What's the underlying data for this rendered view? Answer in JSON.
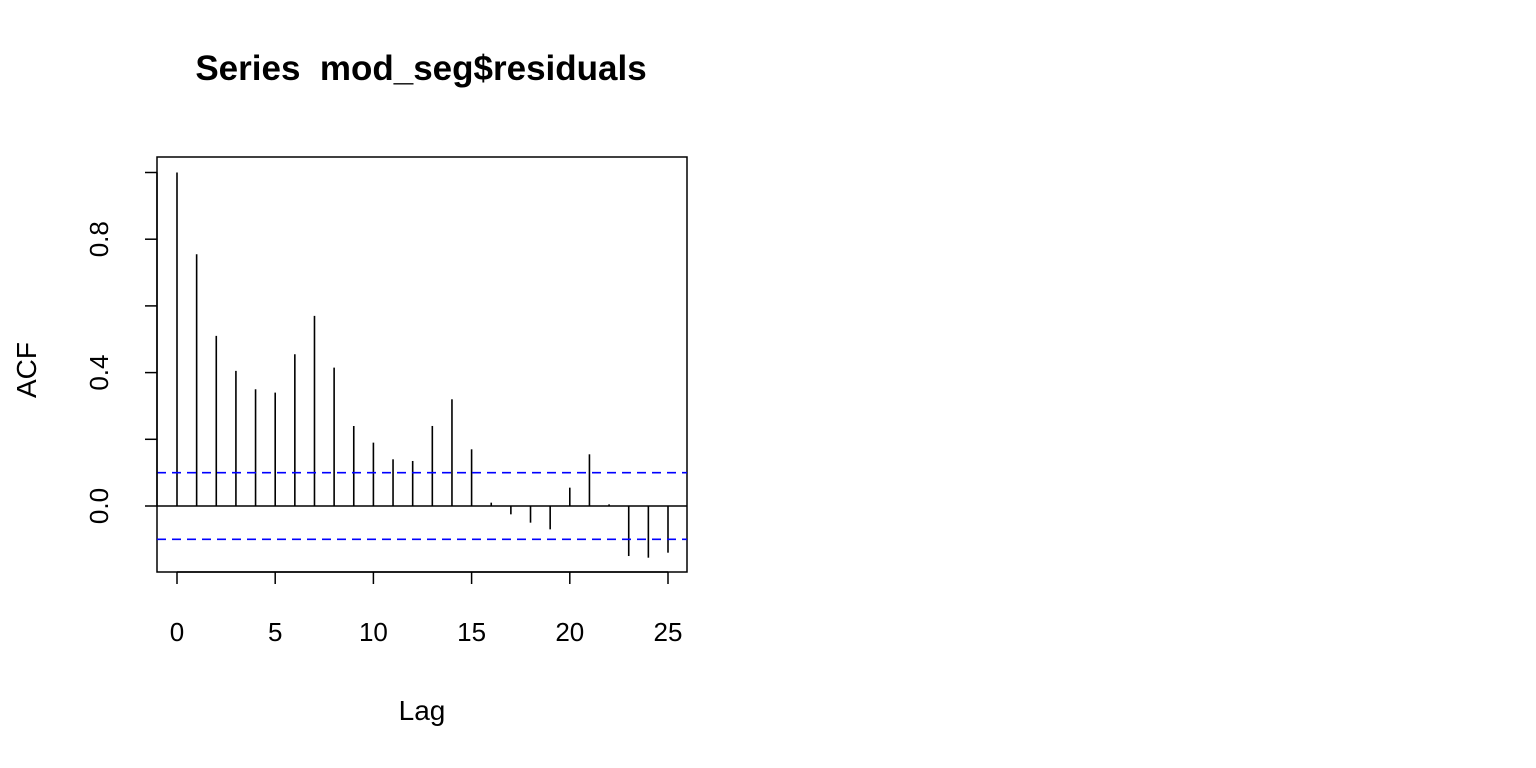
{
  "chart_data": {
    "type": "bar",
    "title": "Series  mod_seg$residuals",
    "xlabel": "Lag",
    "ylabel": "ACF",
    "xlim": [
      -1,
      26
    ],
    "ylim": [
      -0.2,
      1.0
    ],
    "x_ticks": [
      0,
      5,
      10,
      15,
      20,
      25
    ],
    "x_tick_labels": [
      "0",
      "5",
      "10",
      "15",
      "20",
      "25"
    ],
    "y_ticks": [
      0.0,
      0.2,
      0.4,
      0.6,
      0.8,
      1.0
    ],
    "y_tick_labels": [
      "0.0",
      "",
      "0.4",
      "",
      "0.8",
      ""
    ],
    "grid": false,
    "confidence_bound": 0.1,
    "series": [
      {
        "x": [
          0,
          1,
          2,
          3,
          4,
          5,
          6,
          7,
          8,
          9,
          10,
          11,
          12,
          13,
          14,
          15,
          16,
          17,
          18,
          19,
          20,
          21,
          22,
          23,
          24,
          25
        ],
        "values": [
          1.0,
          0.755,
          0.51,
          0.405,
          0.35,
          0.34,
          0.455,
          0.57,
          0.415,
          0.24,
          0.19,
          0.14,
          0.135,
          0.24,
          0.32,
          0.17,
          0.01,
          -0.025,
          -0.05,
          -0.07,
          0.055,
          0.155,
          0.005,
          -0.15,
          -0.155,
          -0.14
        ]
      }
    ],
    "colors": {
      "bars": "#000000",
      "bounds": "#0000ff",
      "axis": "#000000"
    }
  }
}
